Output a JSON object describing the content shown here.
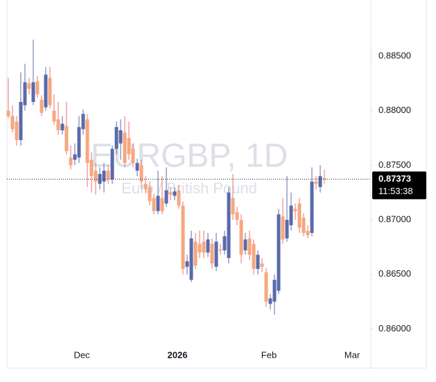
{
  "chart_data": {
    "type": "candlestick",
    "title": "EURGBP, 1D",
    "subtitle": "Euro / British Pound",
    "up_color": "#5b6aa8",
    "down_color": "#f6a77f",
    "down_wick_color": "#ee6f6f",
    "open": [
      0.88,
      0.8795,
      0.879,
      0.8773,
      0.8805,
      0.8825,
      0.8808,
      0.8827,
      0.881,
      0.8803,
      0.883,
      0.88,
      0.8792,
      0.8782,
      0.8786,
      0.8757,
      0.8755,
      0.8757,
      0.8783,
      0.8792,
      0.8755,
      0.8745,
      0.8733,
      0.8735,
      0.8745,
      0.8737,
      0.8765,
      0.877,
      0.878,
      0.8775,
      0.8765,
      0.8745,
      0.875,
      0.8733,
      0.873,
      0.872,
      0.8708,
      0.872,
      0.8715,
      0.8725,
      0.8722,
      0.8727,
      0.8713,
      0.8657,
      0.8645,
      0.868,
      0.8678,
      0.868,
      0.867,
      0.8678,
      0.8657,
      0.8673,
      0.8672,
      0.8665,
      0.872,
      0.8707,
      0.87,
      0.8672,
      0.8683,
      0.8678,
      0.8655,
      0.866,
      0.8652,
      0.8623,
      0.8625,
      0.8635,
      0.8703,
      0.8683,
      0.8695,
      0.871,
      0.8715,
      0.8702,
      0.869,
      0.8688,
      0.8735,
      0.873,
      0.8738
    ],
    "high": [
      0.883,
      0.8805,
      0.8795,
      0.8835,
      0.8843,
      0.883,
      0.8865,
      0.8832,
      0.8814,
      0.884,
      0.884,
      0.8815,
      0.8808,
      0.8795,
      0.8808,
      0.8768,
      0.877,
      0.8795,
      0.8801,
      0.8797,
      0.8762,
      0.8752,
      0.8748,
      0.8752,
      0.875,
      0.8768,
      0.879,
      0.8792,
      0.8795,
      0.879,
      0.877,
      0.8756,
      0.8755,
      0.874,
      0.8735,
      0.8724,
      0.8745,
      0.874,
      0.8748,
      0.873,
      0.873,
      0.8732,
      0.8717,
      0.8668,
      0.869,
      0.8688,
      0.869,
      0.869,
      0.8688,
      0.8683,
      0.8688,
      0.8678,
      0.869,
      0.873,
      0.8742,
      0.8712,
      0.8705,
      0.8688,
      0.869,
      0.8682,
      0.8672,
      0.8665,
      0.8656,
      0.8632,
      0.865,
      0.871,
      0.872,
      0.874,
      0.8725,
      0.8715,
      0.872,
      0.8706,
      0.8695,
      0.8748,
      0.874,
      0.875,
      0.8746
    ],
    "low": [
      0.8793,
      0.878,
      0.8768,
      0.8768,
      0.88,
      0.8815,
      0.8805,
      0.8812,
      0.8795,
      0.88,
      0.8802,
      0.8787,
      0.8778,
      0.8778,
      0.876,
      0.8746,
      0.875,
      0.8752,
      0.8778,
      0.873,
      0.8725,
      0.8723,
      0.8728,
      0.8725,
      0.8733,
      0.8733,
      0.876,
      0.8755,
      0.8748,
      0.8755,
      0.8748,
      0.874,
      0.8728,
      0.8724,
      0.8713,
      0.8705,
      0.8705,
      0.8705,
      0.8712,
      0.8718,
      0.8718,
      0.871,
      0.865,
      0.865,
      0.8643,
      0.8655,
      0.8665,
      0.8665,
      0.8666,
      0.8655,
      0.8653,
      0.8668,
      0.8668,
      0.866,
      0.87,
      0.8695,
      0.866,
      0.8668,
      0.8663,
      0.865,
      0.865,
      0.8652,
      0.862,
      0.8618,
      0.8613,
      0.8632,
      0.8678,
      0.868,
      0.869,
      0.87,
      0.8688,
      0.8685,
      0.8683,
      0.8685,
      0.8728,
      0.8725,
      0.8733
    ],
    "close": [
      0.8795,
      0.8783,
      0.8773,
      0.8808,
      0.8826,
      0.882,
      0.8826,
      0.8815,
      0.8798,
      0.8833,
      0.8805,
      0.879,
      0.8782,
      0.8788,
      0.8763,
      0.875,
      0.876,
      0.8785,
      0.8797,
      0.8752,
      0.874,
      0.8735,
      0.8742,
      0.8745,
      0.8737,
      0.8765,
      0.8785,
      0.8782,
      0.8752,
      0.876,
      0.8752,
      0.8752,
      0.8735,
      0.8728,
      0.8717,
      0.8708,
      0.8722,
      0.8708,
      0.8727,
      0.8723,
      0.8726,
      0.8713,
      0.8655,
      0.8662,
      0.8683,
      0.8658,
      0.867,
      0.867,
      0.8682,
      0.866,
      0.868,
      0.8672,
      0.8685,
      0.8725,
      0.8705,
      0.87,
      0.8668,
      0.8682,
      0.8668,
      0.8655,
      0.8668,
      0.8657,
      0.8625,
      0.8628,
      0.8645,
      0.8705,
      0.8682,
      0.87,
      0.8713,
      0.8708,
      0.8693,
      0.8688,
      0.8686,
      0.8735,
      0.8733,
      0.874,
      0.8737
    ],
    "ylim": [
      0.8587,
      0.8895
    ],
    "yticks": [
      {
        "value": 0.86,
        "label": "0.86000"
      },
      {
        "value": 0.865,
        "label": "0.86500"
      },
      {
        "value": 0.87,
        "label": "0.87000"
      },
      {
        "value": 0.875,
        "label": "0.87500"
      },
      {
        "value": 0.88,
        "label": "0.88000"
      },
      {
        "value": 0.885,
        "label": "0.88500"
      }
    ],
    "xlim": [
      -0.33,
      87.17
    ],
    "xticks": [
      {
        "value": 17.67,
        "label": "Dec"
      },
      {
        "value": 40.67,
        "label": "2026"
      },
      {
        "value": 62.67,
        "label": "Feb"
      },
      {
        "value": 82.67,
        "label": "Mar"
      }
    ],
    "last_price": 0.87373,
    "countdown": "11:53:38"
  }
}
